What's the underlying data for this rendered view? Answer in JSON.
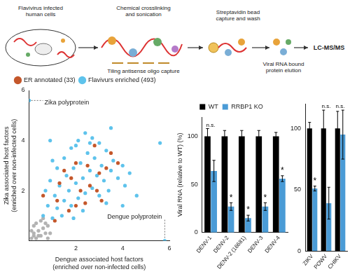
{
  "diagram": {
    "steps": [
      "Flavivirus infected human cells",
      "Chemical crosslinking and sonication",
      "Tiling antisense oligo capture",
      "Streptavidin bead capture and wash",
      "Viral RNA bound protein elution",
      "LC-MS/MS"
    ]
  },
  "chart_data": [
    {
      "type": "scatter",
      "x_label": [
        "Dengue associated host factors",
        "(enriched over non-infected cells)"
      ],
      "y_label": [
        "Zika associated host factors",
        "(enriched over non-infected cells)"
      ],
      "xlim": [
        0,
        6
      ],
      "ylim": [
        0,
        6
      ],
      "xticks": [
        2,
        4,
        6
      ],
      "yticks": [
        2,
        4,
        6
      ],
      "grid": false,
      "legend": "top",
      "series": [
        {
          "name": "Flavivurs enriched (493)",
          "color": "#5ec3ec",
          "x": [
            0.6,
            0.8,
            1.0,
            1.1,
            1.2,
            1.3,
            1.4,
            1.5,
            1.6,
            1.7,
            1.8,
            1.9,
            2.0,
            2.1,
            2.2,
            2.3,
            2.4,
            2.5,
            2.6,
            2.7,
            2.8,
            2.9,
            3.0,
            3.1,
            3.2,
            3.3,
            3.4,
            3.5,
            3.6,
            3.8,
            4.0,
            4.1,
            4.3,
            4.6,
            0.9,
            1.2,
            1.5,
            1.8,
            2.1,
            2.4,
            2.0,
            2.7,
            3.0,
            3.5,
            1.0,
            0.7,
            2.3,
            1.9,
            3.3,
            4.0,
            5.6,
            0.9,
            0,
            5.8,
            2.6
          ],
          "y": [
            1.0,
            1.4,
            0.9,
            1.8,
            1.3,
            2.2,
            1.0,
            1.6,
            2.6,
            2.0,
            1.4,
            2.9,
            2.3,
            1.7,
            3.1,
            2.5,
            1.9,
            3.5,
            2.8,
            2.1,
            3.3,
            2.6,
            1.8,
            3.0,
            2.4,
            3.6,
            2.0,
            2.8,
            3.2,
            2.5,
            3.0,
            2.2,
            2.7,
            1.8,
            2.4,
            2.9,
            3.3,
            3.7,
            4.0,
            4.3,
            3.8,
            4.1,
            3.9,
            4.5,
            3.2,
            2.0,
            1.2,
            0.9,
            1.5,
            1.4,
            3.9,
            4.0,
            5.6,
            0,
            3.9
          ]
        },
        {
          "name": "ER annotated (33)",
          "color": "#c4572b",
          "x": [
            1.2,
            1.5,
            1.7,
            2.0,
            2.2,
            2.5,
            2.6,
            2.8,
            3.0,
            3.1,
            3.3,
            3.5,
            1.8,
            1.1,
            2.4,
            3.8,
            2.0,
            1.3,
            0.6,
            2.9
          ],
          "y": [
            1.6,
            2.8,
            1.2,
            3.1,
            2.0,
            3.0,
            2.2,
            3.8,
            2.7,
            1.6,
            2.9,
            3.5,
            2.5,
            0.8,
            1.5,
            3.1,
            1.4,
            2.3,
            1.8,
            2.0
          ]
        },
        {
          "color": "#b3b3b3",
          "x": [
            0.1,
            0.2,
            0.3,
            0.4,
            0.5,
            0.2,
            0.6,
            0.7,
            0.3,
            0.8,
            0.1,
            0.5,
            0.9,
            0.4,
            0.6,
            0.8,
            0.2,
            0.7
          ],
          "y": [
            0.1,
            0.3,
            0.1,
            0.4,
            0.2,
            0.6,
            0.5,
            0.3,
            0.7,
            0.6,
            0.4,
            0.8,
            0.3,
            0.2,
            0.9,
            0.1,
            0.2,
            0.7
          ]
        }
      ],
      "annotations": [
        {
          "text": "Zika polyprotein",
          "x": 0,
          "y": 5.6
        },
        {
          "text": "Dengue polyprotein",
          "x": 5.8,
          "y": 0
        }
      ]
    },
    {
      "type": "bar",
      "y_label": "Viral RNA (relative to WT) (%)",
      "categories": [
        "DENV-1",
        "DENV-2",
        "DENV-2 (16681)",
        "DENV-3",
        "DENV-4"
      ],
      "ylim": [
        0,
        120
      ],
      "yticks": [
        0,
        50,
        100
      ],
      "legend": "top",
      "series": [
        {
          "name": "WT",
          "color": "#000000",
          "values": [
            100,
            100,
            100,
            100,
            100
          ],
          "errors": [
            8,
            6,
            6,
            6,
            4
          ]
        },
        {
          "name": "RRBP1 KO",
          "color": "#4a9bd6",
          "values": [
            64,
            27,
            15,
            27,
            56
          ],
          "errors": [
            11,
            4,
            3,
            4,
            3
          ]
        }
      ],
      "annotations": [
        {
          "category": "DENV-1",
          "text": "n.s."
        },
        {
          "category": "DENV-2",
          "text": "*"
        },
        {
          "category": "DENV-2 (16681)",
          "text": "*"
        },
        {
          "category": "DENV-3",
          "text": "*"
        },
        {
          "category": "DENV-4",
          "text": "*"
        }
      ]
    },
    {
      "type": "bar",
      "categories": [
        "ZIKV",
        "POWV",
        "CHIKV"
      ],
      "ylim": [
        0,
        120
      ],
      "yticks": [
        0,
        50,
        100
      ],
      "series": [
        {
          "name": "WT",
          "color": "#000000",
          "values": [
            100,
            100,
            100
          ],
          "errors": [
            5,
            15,
            14
          ]
        },
        {
          "name": "RRBP1 KO",
          "color": "#4a9bd6",
          "values": [
            51,
            39,
            95
          ],
          "errors": [
            2,
            13,
            20
          ]
        }
      ],
      "annotations": [
        {
          "category": "ZIKV",
          "text": "*"
        },
        {
          "category": "POWV",
          "text": "n.s."
        },
        {
          "category": "CHIKV",
          "text": "n.s."
        }
      ]
    }
  ]
}
